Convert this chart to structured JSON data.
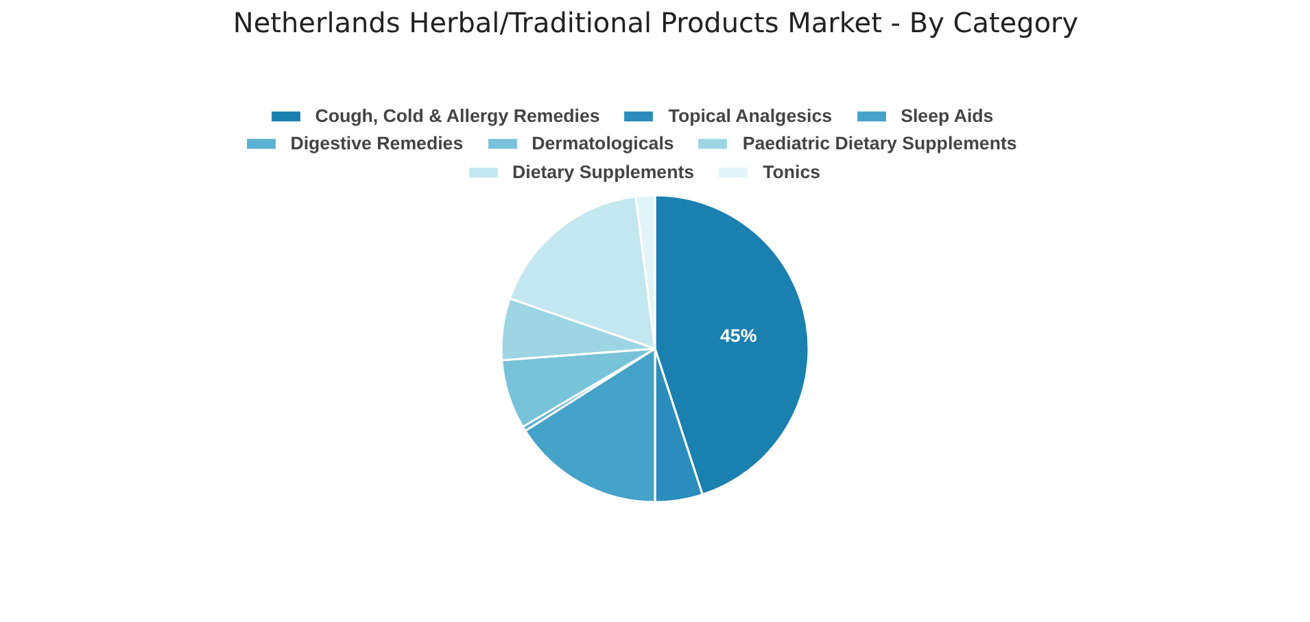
{
  "chart_data": {
    "type": "pie",
    "title": "Netherlands Herbal/Traditional Products Market - By Category",
    "categories": [
      "Cough, Cold & Allergy Remedies",
      "Topical Analgesics",
      "Sleep Aids",
      "Digestive Remedies",
      "Dermatologicals",
      "Paediatric Dietary Supplements",
      "Dietary Supplements",
      "Tonics"
    ],
    "values": [
      45,
      5,
      16,
      0.5,
      7.3,
      6.5,
      17.7,
      2
    ],
    "colors": [
      "#1a80b0",
      "#2a8dbb",
      "#45a2c8",
      "#5bb1d2",
      "#78c3da",
      "#9dd5e4",
      "#c3e7ef",
      "#e2f4f7"
    ],
    "value_labels": [
      "45%",
      null,
      null,
      null,
      null,
      null,
      null,
      null
    ],
    "legend": "top"
  }
}
